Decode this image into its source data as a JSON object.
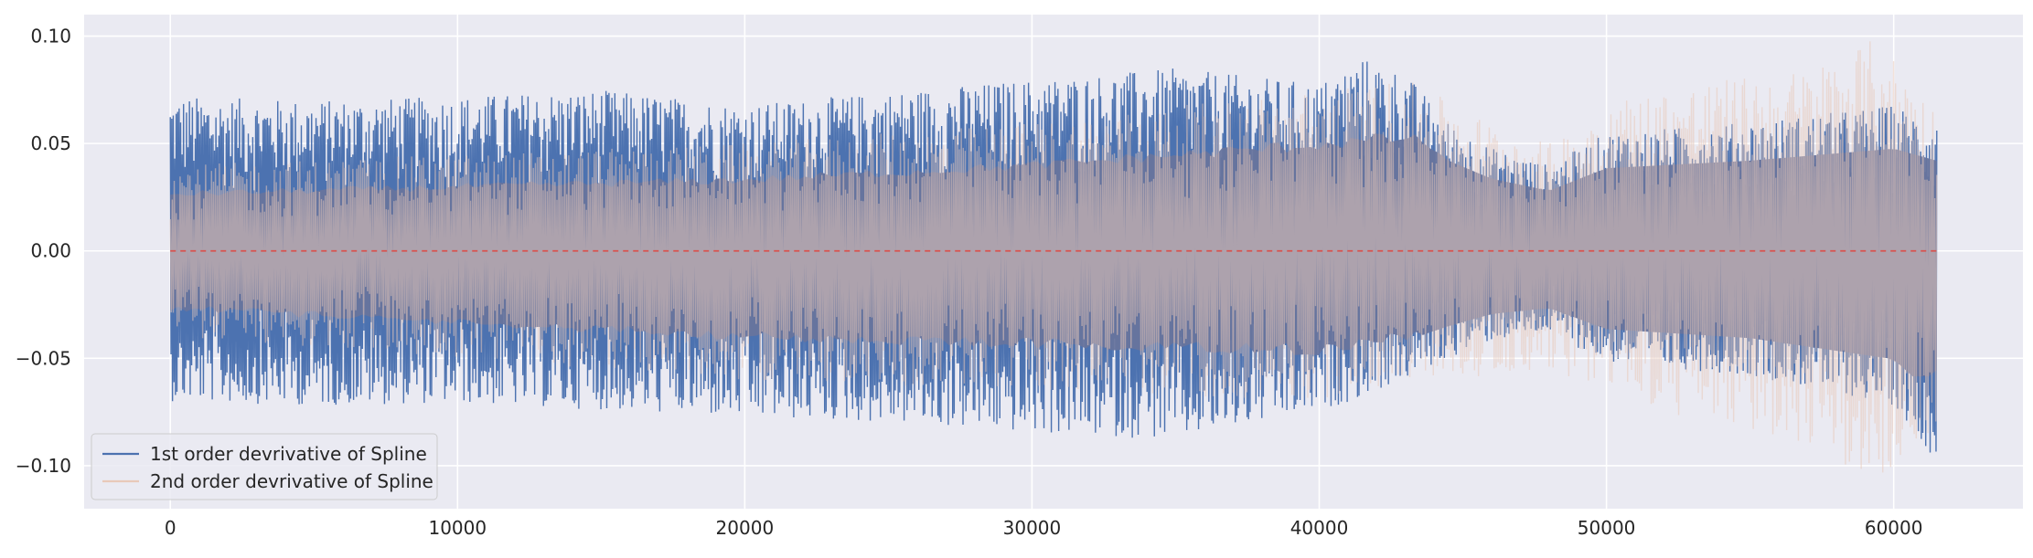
{
  "chart_data": {
    "type": "line",
    "title": "",
    "xlabel": "",
    "ylabel": "",
    "xlim": [
      -3000,
      64500
    ],
    "ylim": [
      -0.12,
      0.11
    ],
    "x_ticks": [
      0,
      10000,
      20000,
      30000,
      40000,
      50000,
      60000
    ],
    "x_tick_labels": [
      "0",
      "10000",
      "20000",
      "30000",
      "40000",
      "50000",
      "60000"
    ],
    "y_ticks": [
      0.1,
      0.05,
      0.0,
      -0.05,
      -0.1
    ],
    "y_tick_labels": [
      "0.10",
      "0.05",
      "0.00",
      "−0.05",
      "−0.10"
    ],
    "grid": true,
    "background_color": "#eaeaf2",
    "legend_position": "lower-left",
    "x_range": [
      0,
      61500
    ],
    "series": [
      {
        "name": "1st order devrivative of Spline",
        "color": "#4c72b0",
        "x": [
          0,
          5000,
          10000,
          15000,
          20000,
          25000,
          30000,
          35000,
          40000,
          41500,
          43000,
          44500,
          46000,
          48000,
          50000,
          55000,
          60000,
          61500
        ],
        "upper": [
          0.072,
          0.07,
          0.072,
          0.075,
          0.068,
          0.074,
          0.08,
          0.085,
          0.078,
          0.09,
          0.083,
          0.06,
          0.048,
          0.04,
          0.055,
          0.06,
          0.068,
          0.06
        ],
        "lower": [
          -0.07,
          -0.072,
          -0.071,
          -0.074,
          -0.078,
          -0.08,
          -0.085,
          -0.088,
          -0.075,
          -0.068,
          -0.06,
          -0.05,
          -0.042,
          -0.038,
          -0.052,
          -0.058,
          -0.072,
          -0.098
        ]
      },
      {
        "name": "2nd order devrivative of Spline",
        "color": "#e8c9b9",
        "x": [
          0,
          10000,
          20000,
          30000,
          40000,
          43000,
          46000,
          48000,
          50000,
          53000,
          57000,
          59500,
          61500
        ],
        "upper": [
          0.04,
          0.045,
          0.05,
          0.06,
          0.075,
          0.08,
          0.06,
          0.05,
          0.07,
          0.078,
          0.085,
          0.1,
          0.065
        ],
        "lower": [
          -0.04,
          -0.05,
          -0.06,
          -0.065,
          -0.07,
          -0.06,
          -0.058,
          -0.055,
          -0.065,
          -0.08,
          -0.09,
          -0.108,
          -0.085
        ]
      }
    ],
    "overlap_color": "#67749d",
    "reference_line": {
      "y": 0.0,
      "color": "#d9534f",
      "style": "dashed"
    }
  }
}
